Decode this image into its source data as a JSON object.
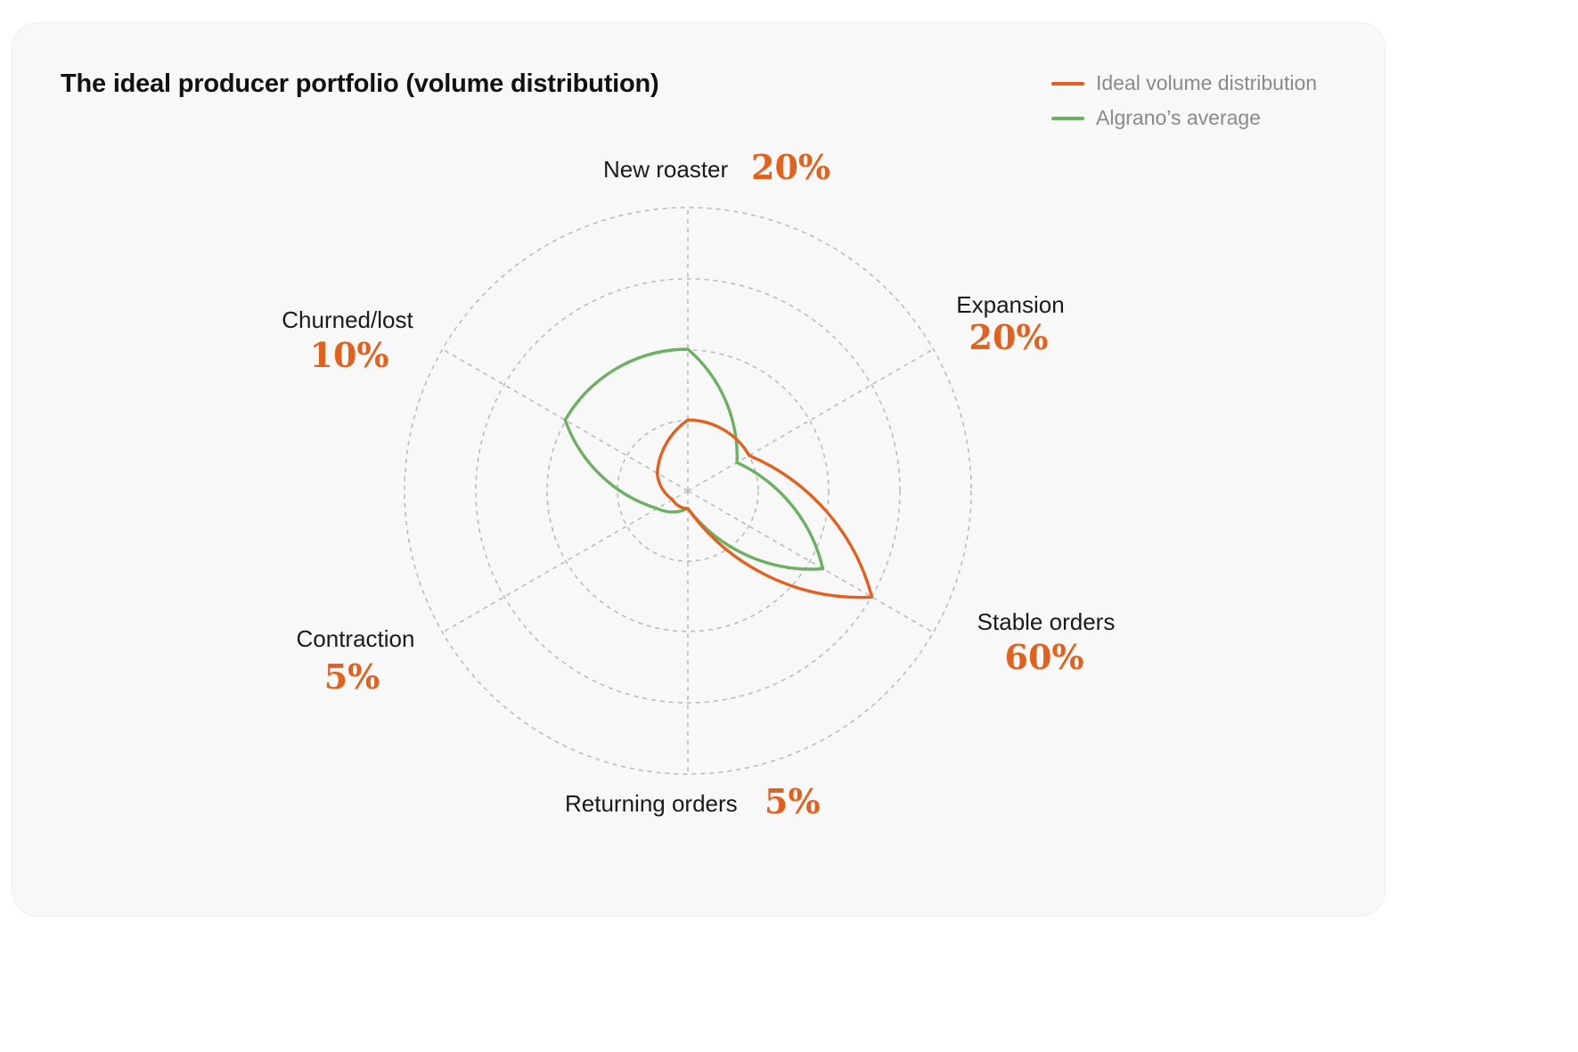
{
  "title": "The ideal producer portfolio (volume distribution)",
  "legend": [
    {
      "label": "Ideal volume distribution",
      "color": "#e2621d"
    },
    {
      "label": "Algrano’s average",
      "color": "#6cb062"
    }
  ],
  "chart_data": {
    "type": "radar",
    "axes": [
      "New roaster",
      "Expansion",
      "Stable orders",
      "Returning orders",
      "Contraction",
      "Churned/lost"
    ],
    "axis_value_labels": [
      "20%",
      "20%",
      "60%",
      "5%",
      "5%",
      "10%"
    ],
    "series": [
      {
        "name": "Ideal volume distribution",
        "color": "#e2621d",
        "values": [
          20,
          20,
          60,
          5,
          5,
          10
        ]
      },
      {
        "name": "Algrano’s average",
        "color": "#6cb062",
        "values": [
          40,
          16,
          44,
          5,
          10,
          40
        ]
      }
    ],
    "rings": 4,
    "grid": true,
    "legend_position": "top-right"
  }
}
